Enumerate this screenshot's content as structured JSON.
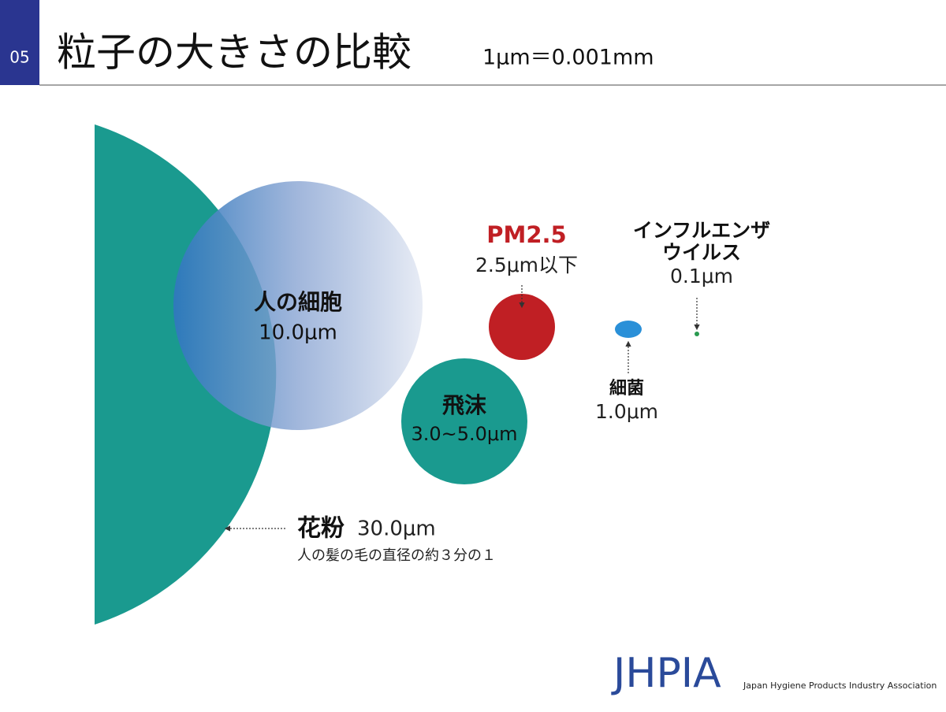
{
  "header": {
    "slide_number": "05",
    "title": "粒子の大きさの比較",
    "unit_note": "1μm＝0.001mm"
  },
  "particles": [
    {
      "name": "人の細胞",
      "size": "10.0μm"
    },
    {
      "name": "飛沫",
      "size": "3.0~5.0μm"
    },
    {
      "name": "PM2.5",
      "size": "2.5μm以下"
    },
    {
      "name": "細菌",
      "size": "1.0μm"
    },
    {
      "name": "インフルエンザ",
      "name_line2": "ウイルス",
      "size": "0.1μm"
    },
    {
      "name": "花粉",
      "size": "30.0μm",
      "note": "人の髪の毛の直径の約３分の１"
    }
  ],
  "footer": {
    "logo": "JHPIA",
    "organization": "Japan Hygiene Products Industry Association"
  }
}
